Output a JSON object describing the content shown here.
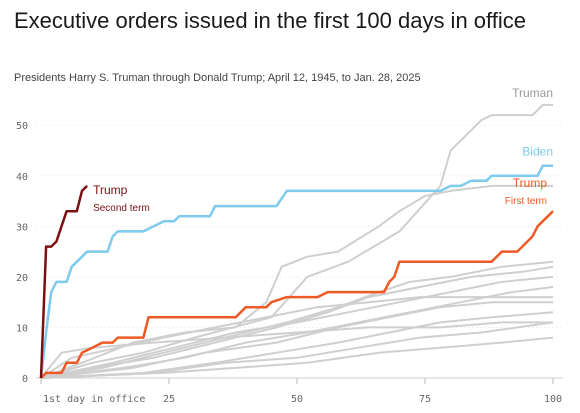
{
  "chart_data": {
    "type": "line",
    "title": "Executive orders issued in the first 100 days in office",
    "subtitle": "Presidents Harry S. Truman through Donald Trump; April 12, 1945, to Jan. 28, 2025",
    "xlim": [
      0,
      100
    ],
    "ylim": [
      0,
      54
    ],
    "x_ticks": [
      {
        "value": 0,
        "label": "1st day in office"
      },
      {
        "value": 25,
        "label": "25"
      },
      {
        "value": 50,
        "label": "50"
      },
      {
        "value": 75,
        "label": "75"
      },
      {
        "value": 100,
        "label": "100"
      }
    ],
    "y_ticks": [
      0,
      10,
      20,
      30,
      40,
      50
    ],
    "grid": "horizontal",
    "colors": {
      "trump2": "#7a1010",
      "biden": "#7ecbee",
      "trump1": "#ef5a24",
      "others": "#cfcfcf",
      "axis": "#bbbbbb"
    },
    "series": [
      {
        "name": "Trump",
        "sublabel": "Second term",
        "key": "trump2",
        "points": [
          [
            0,
            0
          ],
          [
            1,
            26
          ],
          [
            2,
            26
          ],
          [
            3,
            27
          ],
          [
            5,
            33
          ],
          [
            7,
            33
          ],
          [
            8,
            37
          ],
          [
            9,
            38
          ]
        ]
      },
      {
        "name": "Biden",
        "key": "biden",
        "points": [
          [
            0,
            0
          ],
          [
            1,
            9
          ],
          [
            2,
            17
          ],
          [
            3,
            19
          ],
          [
            5,
            19
          ],
          [
            6,
            22
          ],
          [
            8,
            24
          ],
          [
            9,
            25
          ],
          [
            13,
            25
          ],
          [
            14,
            28
          ],
          [
            15,
            29
          ],
          [
            20,
            29
          ],
          [
            22,
            30
          ],
          [
            24,
            31
          ],
          [
            26,
            31
          ],
          [
            27,
            32
          ],
          [
            33,
            32
          ],
          [
            34,
            34
          ],
          [
            46,
            34
          ],
          [
            48,
            37
          ],
          [
            78,
            37
          ],
          [
            80,
            38
          ],
          [
            82,
            38
          ],
          [
            84,
            39
          ],
          [
            87,
            39
          ],
          [
            88,
            40
          ],
          [
            97,
            40
          ],
          [
            98,
            42
          ],
          [
            100,
            42
          ]
        ]
      },
      {
        "name": "Trump",
        "sublabel": "First term",
        "key": "trump1",
        "points": [
          [
            0,
            0
          ],
          [
            1,
            1
          ],
          [
            4,
            1
          ],
          [
            5,
            3
          ],
          [
            7,
            3
          ],
          [
            8,
            5
          ],
          [
            10,
            6
          ],
          [
            12,
            7
          ],
          [
            14,
            7
          ],
          [
            15,
            8
          ],
          [
            20,
            8
          ],
          [
            21,
            12
          ],
          [
            38,
            12
          ],
          [
            40,
            14
          ],
          [
            44,
            14
          ],
          [
            45,
            15
          ],
          [
            48,
            16
          ],
          [
            54,
            16
          ],
          [
            56,
            17
          ],
          [
            67,
            17
          ],
          [
            68,
            19
          ],
          [
            69,
            20
          ],
          [
            70,
            23
          ],
          [
            88,
            23
          ],
          [
            89,
            24
          ],
          [
            90,
            25
          ],
          [
            93,
            25
          ],
          [
            94,
            26
          ],
          [
            96,
            28
          ],
          [
            97,
            30
          ],
          [
            99,
            32
          ],
          [
            100,
            33
          ]
        ]
      },
      {
        "name": "Truman",
        "key": "others",
        "points": [
          [
            0,
            0
          ],
          [
            10,
            3
          ],
          [
            20,
            5
          ],
          [
            30,
            8
          ],
          [
            45,
            12
          ],
          [
            52,
            20
          ],
          [
            60,
            23
          ],
          [
            70,
            29
          ],
          [
            78,
            38
          ],
          [
            80,
            45
          ],
          [
            84,
            49
          ],
          [
            86,
            51
          ],
          [
            88,
            52
          ],
          [
            96,
            52
          ],
          [
            98,
            54
          ],
          [
            100,
            54
          ]
        ]
      },
      {
        "key": "others",
        "points": [
          [
            0,
            0
          ],
          [
            8,
            3
          ],
          [
            18,
            7
          ],
          [
            28,
            9
          ],
          [
            38,
            10
          ],
          [
            44,
            15
          ],
          [
            47,
            22
          ],
          [
            52,
            24
          ],
          [
            58,
            25
          ],
          [
            66,
            30
          ],
          [
            70,
            33
          ],
          [
            75,
            36
          ],
          [
            80,
            37
          ],
          [
            88,
            38
          ],
          [
            100,
            38
          ]
        ]
      },
      {
        "key": "others",
        "points": [
          [
            0,
            0
          ],
          [
            12,
            2
          ],
          [
            24,
            5
          ],
          [
            36,
            8
          ],
          [
            48,
            11
          ],
          [
            58,
            14
          ],
          [
            66,
            17
          ],
          [
            72,
            19
          ],
          [
            80,
            20
          ],
          [
            90,
            22
          ],
          [
            100,
            23
          ]
        ]
      },
      {
        "key": "others",
        "points": [
          [
            0,
            0
          ],
          [
            10,
            2
          ],
          [
            22,
            4
          ],
          [
            34,
            7
          ],
          [
            46,
            10
          ],
          [
            56,
            13
          ],
          [
            64,
            16
          ],
          [
            74,
            18
          ],
          [
            84,
            20
          ],
          [
            94,
            21
          ],
          [
            100,
            22
          ]
        ]
      },
      {
        "key": "others",
        "points": [
          [
            0,
            0
          ],
          [
            14,
            3
          ],
          [
            26,
            6
          ],
          [
            38,
            9
          ],
          [
            50,
            11
          ],
          [
            60,
            13
          ],
          [
            70,
            15
          ],
          [
            80,
            17
          ],
          [
            90,
            19
          ],
          [
            100,
            20
          ]
        ]
      },
      {
        "key": "others",
        "points": [
          [
            0,
            0
          ],
          [
            16,
            2
          ],
          [
            28,
            4
          ],
          [
            40,
            7
          ],
          [
            52,
            9
          ],
          [
            62,
            11
          ],
          [
            72,
            13
          ],
          [
            82,
            15
          ],
          [
            92,
            17
          ],
          [
            100,
            18
          ]
        ]
      },
      {
        "key": "others",
        "points": [
          [
            0,
            0
          ],
          [
            6,
            4
          ],
          [
            15,
            6
          ],
          [
            24,
            8
          ],
          [
            34,
            10
          ],
          [
            44,
            12
          ],
          [
            54,
            14
          ],
          [
            64,
            15
          ],
          [
            74,
            16
          ],
          [
            86,
            16
          ],
          [
            100,
            16
          ]
        ]
      },
      {
        "key": "others",
        "points": [
          [
            0,
            0
          ],
          [
            18,
            2
          ],
          [
            32,
            5
          ],
          [
            46,
            7
          ],
          [
            58,
            10
          ],
          [
            68,
            12
          ],
          [
            78,
            14
          ],
          [
            88,
            15
          ],
          [
            100,
            15
          ]
        ]
      },
      {
        "key": "others",
        "points": [
          [
            0,
            0
          ],
          [
            20,
            1
          ],
          [
            34,
            3
          ],
          [
            46,
            5
          ],
          [
            58,
            7
          ],
          [
            68,
            9
          ],
          [
            78,
            11
          ],
          [
            88,
            12
          ],
          [
            100,
            13
          ]
        ]
      },
      {
        "key": "others",
        "points": [
          [
            0,
            0
          ],
          [
            22,
            1
          ],
          [
            36,
            3
          ],
          [
            50,
            4
          ],
          [
            62,
            6
          ],
          [
            74,
            8
          ],
          [
            86,
            9
          ],
          [
            100,
            11
          ]
        ]
      },
      {
        "key": "others",
        "points": [
          [
            0,
            0
          ],
          [
            4,
            5
          ],
          [
            10,
            6
          ],
          [
            22,
            7
          ],
          [
            36,
            8
          ],
          [
            50,
            9
          ],
          [
            64,
            10
          ],
          [
            78,
            10
          ],
          [
            90,
            11
          ],
          [
            100,
            11
          ]
        ]
      },
      {
        "key": "others",
        "points": [
          [
            0,
            0
          ],
          [
            24,
            1
          ],
          [
            38,
            2
          ],
          [
            52,
            3
          ],
          [
            66,
            5
          ],
          [
            78,
            6
          ],
          [
            90,
            7
          ],
          [
            100,
            8
          ]
        ]
      }
    ]
  }
}
